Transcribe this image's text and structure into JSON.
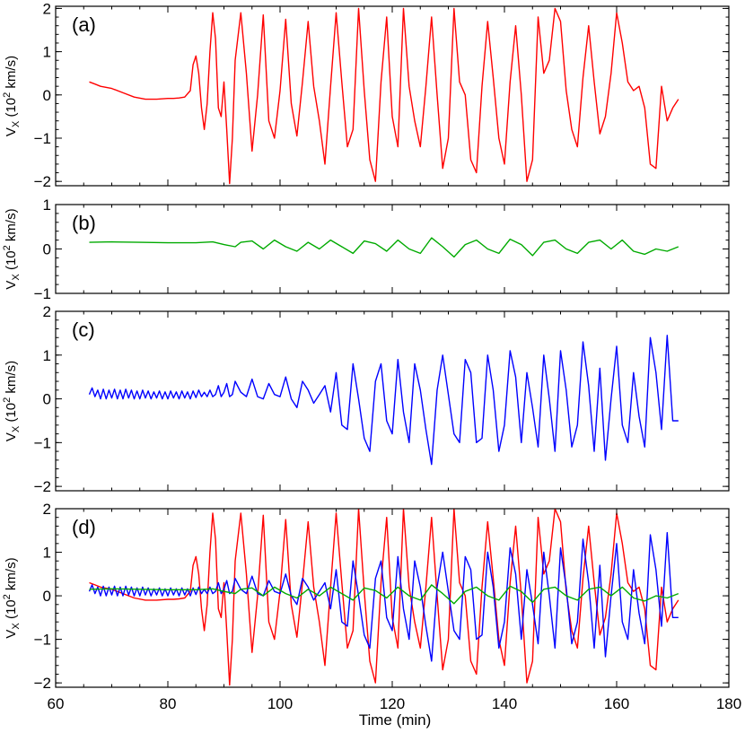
{
  "figure": {
    "xlabel": "Time (min)",
    "xticks": [
      "60",
      "80",
      "100",
      "120",
      "140",
      "160",
      "180"
    ],
    "ylabel_main": "V",
    "ylabel_sub": "X",
    "ylabel_rest": " (10",
    "ylabel_sup": "2",
    "ylabel_unit": " km/s)"
  },
  "colors": {
    "red": "#ff0000",
    "green": "#00aa00",
    "blue": "#0000ff",
    "axis": "#000000"
  },
  "chart_data": [
    {
      "type": "line",
      "panel_label": "(a)",
      "xlim": [
        60,
        180
      ],
      "ylim": [
        -2.1,
        2.05
      ],
      "yticks": [
        -2,
        -1,
        0,
        1,
        2
      ],
      "series": [
        {
          "color": "red",
          "x": [
            66,
            67,
            68,
            70,
            72,
            74,
            76,
            78,
            80,
            81,
            82,
            83,
            84,
            84.5,
            85,
            85.5,
            86,
            86.5,
            87,
            87.5,
            88,
            88.5,
            89,
            89.5,
            90,
            90.5,
            91,
            91.5,
            92,
            93,
            94,
            95,
            96,
            97,
            98,
            99,
            100,
            101,
            102,
            103,
            104,
            105,
            106,
            107,
            108,
            109,
            110,
            111,
            112,
            113,
            114,
            115,
            116,
            117,
            118,
            119,
            120,
            121,
            122,
            123,
            124,
            125,
            126,
            127,
            128,
            129,
            130,
            131,
            132,
            133,
            134,
            135,
            136,
            137,
            138,
            139,
            140,
            141,
            142,
            143,
            144,
            145,
            146,
            147,
            148,
            149,
            150,
            151,
            152,
            153,
            154,
            155,
            156,
            157,
            158,
            159,
            160,
            161,
            162,
            163,
            164,
            165,
            166,
            167,
            168,
            169,
            170,
            171
          ],
          "y": [
            0.3,
            0.25,
            0.2,
            0.15,
            0.05,
            -0.05,
            -0.1,
            -0.1,
            -0.08,
            -0.08,
            -0.07,
            -0.05,
            0.1,
            0.7,
            0.9,
            0.5,
            -0.3,
            -0.8,
            -0.2,
            1.0,
            1.9,
            1.3,
            -0.3,
            -0.5,
            0.3,
            -0.8,
            -2.05,
            -1.0,
            0.8,
            1.9,
            0.5,
            -1.3,
            0.0,
            1.85,
            -0.6,
            -1.0,
            0.1,
            1.75,
            -0.2,
            -0.95,
            0.3,
            1.7,
            0.2,
            -0.6,
            -1.6,
            0.2,
            1.9,
            0.3,
            -1.2,
            -0.8,
            2.0,
            0.1,
            -1.5,
            -2.0,
            0.3,
            1.8,
            -0.5,
            -1.2,
            2.0,
            0.2,
            -0.6,
            -1.2,
            0.2,
            1.8,
            0.0,
            -1.7,
            -1.0,
            2.0,
            0.3,
            0.0,
            -1.5,
            -1.8,
            0.2,
            1.7,
            0.4,
            -1.0,
            -1.6,
            0.3,
            1.6,
            0.0,
            -2.0,
            -1.5,
            1.8,
            0.5,
            0.8,
            2.0,
            1.7,
            0.1,
            -0.8,
            -1.2,
            0.4,
            1.6,
            0.3,
            -0.9,
            -0.5,
            0.5,
            1.9,
            1.2,
            0.3,
            0.1,
            0.2,
            -0.3,
            -1.6,
            -1.7,
            0.2,
            -0.6,
            -0.3,
            -0.1
          ]
        }
      ]
    },
    {
      "type": "line",
      "panel_label": "(b)",
      "xlim": [
        60,
        180
      ],
      "ylim": [
        -1,
        1
      ],
      "yticks": [
        -1,
        0,
        1
      ],
      "series": [
        {
          "color": "green",
          "x": [
            66,
            70,
            75,
            80,
            85,
            88,
            90,
            92,
            93,
            95,
            97,
            99,
            101,
            103,
            105,
            107,
            109,
            111,
            113,
            115,
            117,
            119,
            121,
            123,
            125,
            127,
            129,
            131,
            133,
            135,
            137,
            139,
            141,
            143,
            145,
            147,
            149,
            151,
            153,
            155,
            157,
            159,
            161,
            163,
            165,
            167,
            169,
            171
          ],
          "y": [
            0.15,
            0.16,
            0.15,
            0.14,
            0.14,
            0.16,
            0.1,
            0.05,
            0.15,
            0.18,
            0.0,
            0.2,
            0.05,
            -0.05,
            0.15,
            0.0,
            0.2,
            0.05,
            -0.1,
            0.18,
            0.12,
            -0.05,
            0.2,
            0.0,
            -0.1,
            0.25,
            0.05,
            -0.18,
            0.1,
            0.2,
            0.0,
            -0.1,
            0.22,
            0.1,
            -0.15,
            0.15,
            0.2,
            0.0,
            -0.1,
            0.15,
            0.2,
            0.0,
            0.2,
            -0.05,
            -0.12,
            0.0,
            -0.05,
            0.05
          ]
        }
      ]
    },
    {
      "type": "line",
      "panel_label": "(c)",
      "xlim": [
        60,
        180
      ],
      "ylim": [
        -2.1,
        2
      ],
      "yticks": [
        -2,
        -1,
        0,
        1,
        2
      ],
      "series": [
        {
          "color": "blue",
          "x": [
            66,
            66.5,
            67,
            67.5,
            68,
            68.5,
            69,
            69.5,
            70,
            70.5,
            71,
            71.5,
            72,
            72.5,
            73,
            73.5,
            74,
            74.5,
            75,
            75.5,
            76,
            76.5,
            77,
            77.5,
            78,
            78.5,
            79,
            79.5,
            80,
            80.5,
            81,
            81.5,
            82,
            82.5,
            83,
            83.5,
            84,
            84.5,
            85,
            85.5,
            86,
            86.5,
            87,
            87.5,
            88,
            88.5,
            89,
            89.5,
            90,
            90.5,
            91,
            91.5,
            92,
            93,
            94,
            95,
            96,
            97,
            98,
            99,
            100,
            101,
            102,
            103,
            104,
            105,
            106,
            107,
            108,
            109,
            110,
            111,
            112,
            113,
            114,
            115,
            116,
            117,
            118,
            119,
            120,
            121,
            122,
            123,
            124,
            125,
            126,
            127,
            128,
            129,
            130,
            131,
            132,
            133,
            134,
            135,
            136,
            137,
            138,
            139,
            140,
            141,
            142,
            143,
            144,
            145,
            146,
            147,
            148,
            149,
            150,
            151,
            152,
            153,
            154,
            155,
            156,
            157,
            158,
            159,
            160,
            161,
            162,
            163,
            164,
            165,
            166,
            167,
            168,
            169,
            170,
            171
          ],
          "y": [
            0.1,
            0.25,
            0.05,
            0.2,
            0.0,
            0.22,
            0.0,
            0.2,
            0.02,
            0.22,
            0.0,
            0.2,
            0.0,
            0.22,
            0.02,
            0.2,
            0.0,
            0.18,
            0.0,
            0.2,
            0.02,
            0.18,
            0.0,
            0.16,
            0.02,
            0.18,
            0.0,
            0.16,
            0.0,
            0.18,
            0.02,
            0.16,
            0.0,
            0.18,
            0.02,
            0.16,
            0.0,
            0.18,
            0.03,
            0.2,
            0.05,
            0.15,
            0.05,
            0.2,
            0.05,
            0.1,
            0.3,
            0.05,
            0.15,
            0.35,
            0.05,
            0.1,
            0.4,
            0.15,
            0.05,
            0.45,
            0.05,
            0.0,
            0.35,
            0.1,
            0.05,
            0.5,
            0.0,
            -0.2,
            0.4,
            0.2,
            -0.1,
            0.1,
            0.3,
            -0.3,
            0.6,
            -0.6,
            -0.7,
            0.8,
            0.0,
            -0.9,
            -1.2,
            0.4,
            0.8,
            -0.5,
            -0.8,
            0.9,
            -0.3,
            -1.0,
            0.8,
            0.2,
            -0.7,
            -1.5,
            0.2,
            1.0,
            0.1,
            -0.8,
            -1.0,
            0.9,
            0.6,
            -1.0,
            -0.9,
            1.0,
            0.2,
            -1.2,
            -0.6,
            1.1,
            0.5,
            -1.0,
            0.6,
            -0.2,
            -1.1,
            1.0,
            0.0,
            -1.2,
            1.1,
            0.2,
            -1.1,
            -0.6,
            1.3,
            0.3,
            -1.2,
            0.7,
            -1.4,
            0.0,
            1.2,
            -0.6,
            -1.0,
            0.6,
            -0.4,
            -1.1,
            1.4,
            0.6,
            -0.7,
            1.45,
            -0.5,
            -0.5
          ]
        }
      ]
    },
    {
      "type": "line",
      "panel_label": "(d)",
      "xlim": [
        60,
        180
      ],
      "ylim": [
        -2.1,
        2
      ],
      "yticks": [
        -2,
        -1,
        0,
        1,
        2
      ],
      "series": [
        {
          "color": "red",
          "ref_panel": 0
        },
        {
          "color": "blue",
          "ref_panel": 2
        },
        {
          "color": "green",
          "ref_panel": 1
        }
      ]
    }
  ]
}
